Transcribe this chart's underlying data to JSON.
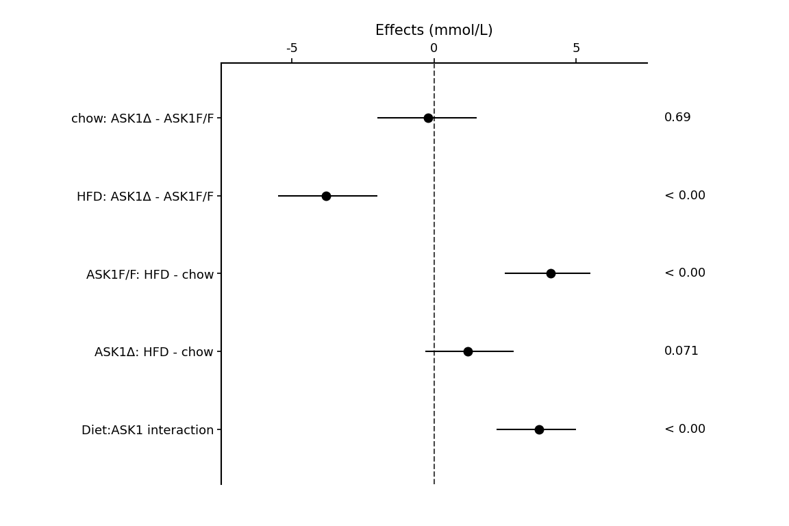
{
  "labels": [
    "chow: ASK1Δ - ASK1F/F",
    "HFD: ASK1Δ - ASK1F/F",
    "ASK1F/F: HFD - chow",
    "ASK1Δ: HFD - chow",
    "Diet:ASK1 interaction"
  ],
  "estimates": [
    -0.2,
    -3.8,
    4.1,
    1.2,
    3.7
  ],
  "ci_low": [
    -2.0,
    -5.5,
    2.5,
    -0.3,
    2.2
  ],
  "ci_high": [
    1.5,
    -2.0,
    5.5,
    2.8,
    5.0
  ],
  "pvalues": [
    "0.69",
    "< 0.00",
    "< 0.00",
    "0.071",
    "< 0.00"
  ],
  "xlim": [
    -7.5,
    7.5
  ],
  "xticks": [
    -5,
    0,
    5
  ],
  "xlabel": "Effects (mmol/L)",
  "vline": 0,
  "dot_color": "#000000",
  "line_color": "#000000",
  "dashed_color": "#444444",
  "pvalue_fontsize": 13,
  "label_fontsize": 13,
  "tick_fontsize": 13,
  "title_fontsize": 15
}
